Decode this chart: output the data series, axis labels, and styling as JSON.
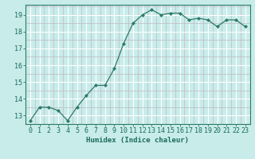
{
  "x": [
    0,
    1,
    2,
    3,
    4,
    5,
    6,
    7,
    8,
    9,
    10,
    11,
    12,
    13,
    14,
    15,
    16,
    17,
    18,
    19,
    20,
    21,
    22,
    23
  ],
  "y": [
    12.7,
    13.5,
    13.5,
    13.3,
    12.7,
    13.5,
    14.2,
    14.8,
    14.8,
    15.8,
    17.3,
    18.5,
    19.0,
    19.3,
    19.0,
    19.1,
    19.1,
    18.7,
    18.8,
    18.7,
    18.3,
    18.7,
    18.7,
    18.3
  ],
  "line_color": "#2d7a68",
  "marker": "D",
  "marker_size": 2.2,
  "bg_color": "#c8ecea",
  "grid_major_color": "#ffffff",
  "grid_minor_color": "#c0b8c8",
  "xlabel": "Humidex (Indice chaleur)",
  "ylim": [
    12.5,
    19.6
  ],
  "xlim": [
    -0.5,
    23.5
  ],
  "yticks": [
    13,
    14,
    15,
    16,
    17,
    18,
    19
  ],
  "xticks": [
    0,
    1,
    2,
    3,
    4,
    5,
    6,
    7,
    8,
    9,
    10,
    11,
    12,
    13,
    14,
    15,
    16,
    17,
    18,
    19,
    20,
    21,
    22,
    23
  ],
  "tick_color": "#1a6b5a",
  "label_fontsize": 6.5,
  "tick_fontsize": 6.0,
  "axis_color": "#2d7a68",
  "linewidth": 0.9
}
